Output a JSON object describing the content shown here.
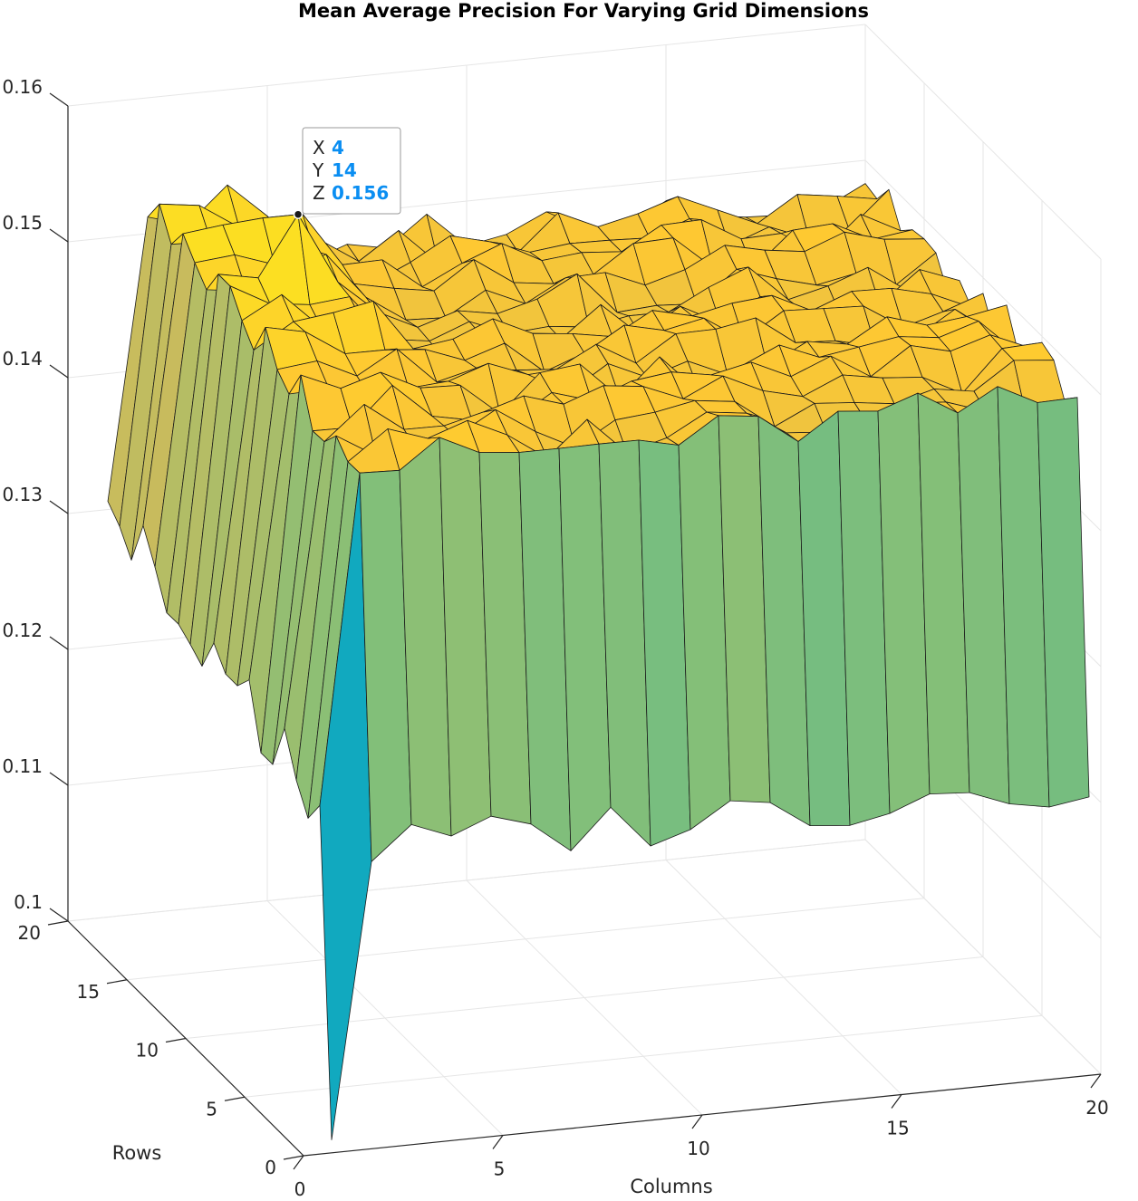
{
  "chart_data": {
    "type": "surface",
    "title": "Mean Average Precision For Varying Grid Dimensions",
    "xlabel": "Columns",
    "ylabel": "Rows",
    "zlabel": "",
    "xlim": [
      0,
      20
    ],
    "ylim": [
      0,
      20
    ],
    "zlim": [
      0.1,
      0.16
    ],
    "x_ticks": [
      "0",
      "5",
      "10",
      "15",
      "20"
    ],
    "y_ticks": [
      "0",
      "5",
      "10",
      "15",
      "20"
    ],
    "z_ticks": [
      "0.1",
      "0.11",
      "0.12",
      "0.13",
      "0.14",
      "0.15",
      "0.16"
    ],
    "grid": true,
    "colormap": "parula",
    "surface_summary": {
      "grid_columns": [
        1,
        20
      ],
      "grid_rows": [
        1,
        20
      ],
      "plateau_level": 0.148,
      "row_1_level": 0.121,
      "column_1_level": 0.131,
      "minimum_point": {
        "x": 1,
        "y": 1,
        "z": 0.1
      },
      "maximum_point": {
        "x": 4,
        "y": 14,
        "z": 0.156
      }
    },
    "datatip": {
      "x_key": "X",
      "x_value": "4",
      "y_key": "Y",
      "y_value": "14",
      "z_key": "Z",
      "z_value": "0.156"
    }
  }
}
